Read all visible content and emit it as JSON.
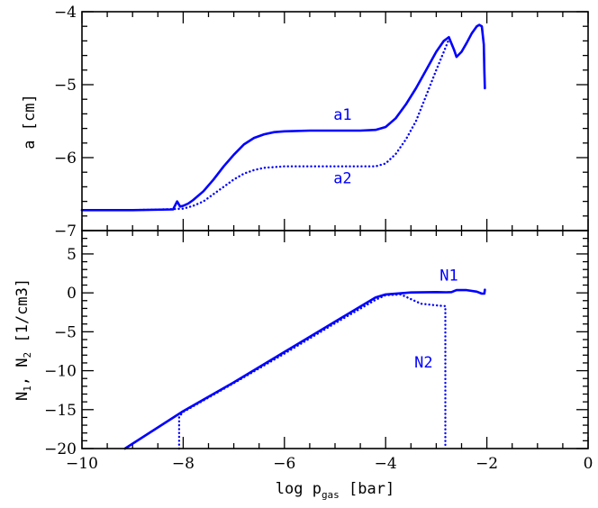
{
  "chart_data": [
    {
      "type": "line",
      "xlim": [
        -10,
        0
      ],
      "ylim": [
        -7,
        -4
      ],
      "xlabel": "",
      "ylabel": "a [cm]",
      "y_ticks": [
        -7,
        -6,
        -5,
        -4
      ],
      "y_tick_labels": [
        "−7",
        "−6",
        "−5",
        "−4"
      ],
      "series": [
        {
          "name": "a1",
          "style": "solid",
          "color": "#0000ff",
          "x": [
            -10.0,
            -9.0,
            -8.2,
            -8.12,
            -8.06,
            -8.0,
            -7.9,
            -7.8,
            -7.6,
            -7.4,
            -7.2,
            -7.0,
            -6.8,
            -6.6,
            -6.4,
            -6.2,
            -6.0,
            -5.5,
            -5.0,
            -4.5,
            -4.2,
            -4.0,
            -3.8,
            -3.6,
            -3.4,
            -3.2,
            -3.0,
            -2.85,
            -2.75,
            -2.65,
            -2.6,
            -2.5,
            -2.4,
            -2.3,
            -2.2,
            -2.15,
            -2.1,
            -2.06,
            -2.05,
            -2.04
          ],
          "y": [
            -6.72,
            -6.72,
            -6.71,
            -6.6,
            -6.67,
            -6.66,
            -6.63,
            -6.58,
            -6.46,
            -6.3,
            -6.12,
            -5.96,
            -5.82,
            -5.73,
            -5.68,
            -5.65,
            -5.64,
            -5.63,
            -5.63,
            -5.63,
            -5.62,
            -5.58,
            -5.46,
            -5.27,
            -5.05,
            -4.8,
            -4.55,
            -4.4,
            -4.35,
            -4.52,
            -4.62,
            -4.55,
            -4.43,
            -4.3,
            -4.2,
            -4.18,
            -4.2,
            -4.45,
            -4.8,
            -5.05
          ]
        },
        {
          "name": "a2",
          "style": "dotted",
          "color": "#0000ff",
          "x": [
            -10.0,
            -9.0,
            -8.4,
            -8.0,
            -7.8,
            -7.6,
            -7.4,
            -7.2,
            -7.0,
            -6.8,
            -6.6,
            -6.4,
            -6.2,
            -6.0,
            -5.5,
            -5.0,
            -4.5,
            -4.2,
            -4.0,
            -3.8,
            -3.6,
            -3.4,
            -3.2,
            -3.0,
            -2.85,
            -2.75
          ],
          "y": [
            -6.72,
            -6.72,
            -6.71,
            -6.7,
            -6.66,
            -6.6,
            -6.5,
            -6.4,
            -6.3,
            -6.22,
            -6.17,
            -6.14,
            -6.13,
            -6.12,
            -6.12,
            -6.12,
            -6.12,
            -6.12,
            -6.08,
            -5.95,
            -5.75,
            -5.5,
            -5.15,
            -4.8,
            -4.55,
            -4.38
          ]
        }
      ],
      "annotations": [
        {
          "text": "a1",
          "x": -4.85,
          "y": -5.48
        },
        {
          "text": "a2",
          "x": -4.85,
          "y": -6.35
        }
      ]
    },
    {
      "type": "line",
      "xlim": [
        -10,
        0
      ],
      "ylim": [
        -20,
        8
      ],
      "xlabel": "log p_gas [bar]",
      "xlabel_main": "log p",
      "xlabel_sub": "gas",
      "xlabel_unit": " [bar]",
      "ylabel": "N1, N2 [1/cm3]",
      "ylabel_n1": "N",
      "ylabel_sub1": "1",
      "ylabel_sep": ", N",
      "ylabel_sub2": "2",
      "ylabel_unit": " [1/cm3]",
      "x_ticks": [
        -10,
        -8,
        -6,
        -4,
        -2,
        0
      ],
      "x_tick_labels": [
        "−10",
        "−8",
        "−6",
        "−4",
        "−2",
        "0"
      ],
      "y_ticks": [
        -20,
        -15,
        -10,
        -5,
        0,
        5
      ],
      "y_tick_labels": [
        "−20",
        "−15",
        "−10",
        "−5",
        "0",
        "5"
      ],
      "series": [
        {
          "name": "N1",
          "style": "solid",
          "color": "#0000ff",
          "x": [
            -9.15,
            -8.0,
            -7.0,
            -6.0,
            -5.0,
            -4.2,
            -4.0,
            -3.5,
            -3.0,
            -2.8,
            -2.7,
            -2.6,
            -2.4,
            -2.2,
            -2.1,
            -2.05,
            -2.04
          ],
          "y": [
            -20.0,
            -15.2,
            -11.5,
            -7.6,
            -3.7,
            -0.6,
            -0.2,
            0.05,
            0.1,
            0.08,
            0.1,
            0.35,
            0.35,
            0.15,
            -0.1,
            -0.1,
            0.4
          ]
        },
        {
          "name": "N2",
          "style": "dotted",
          "color": "#0000ff",
          "x": [
            -8.08,
            -8.08,
            -8.0,
            -7.0,
            -6.0,
            -5.0,
            -4.2,
            -4.0,
            -3.7,
            -3.5,
            -3.3,
            -3.0,
            -2.85,
            -2.82,
            -2.82
          ],
          "y": [
            -20.0,
            -15.9,
            -15.3,
            -11.6,
            -7.8,
            -3.9,
            -0.9,
            -0.3,
            -0.2,
            -0.8,
            -1.4,
            -1.6,
            -1.7,
            -1.7,
            -20.0
          ]
        }
      ],
      "annotations": [
        {
          "text": "N1",
          "x": -2.75,
          "y": 1.6
        },
        {
          "text": "N2",
          "x": -3.25,
          "y": -9.6
        }
      ]
    }
  ]
}
